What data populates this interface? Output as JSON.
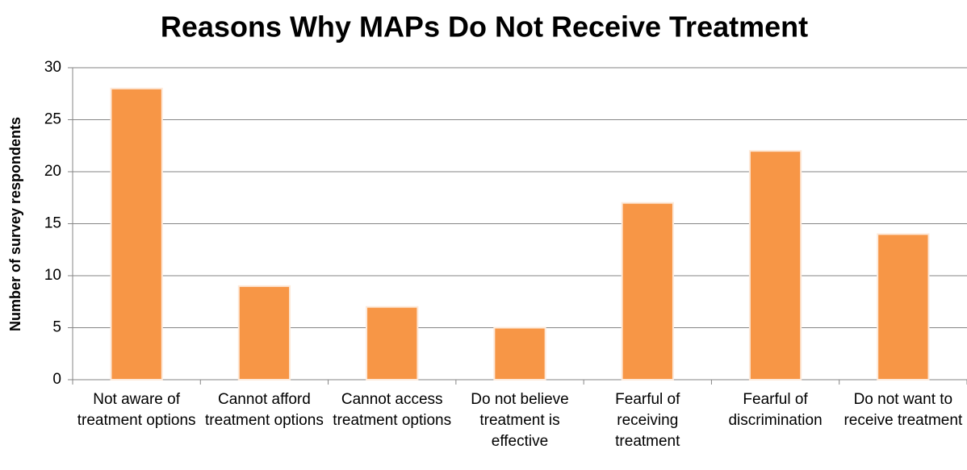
{
  "chart_data": {
    "type": "bar",
    "title": "Reasons Why MAPs Do Not Receive Treatment",
    "y_label": "Number of survey respondents",
    "categories": [
      "Not aware of treatment options",
      "Cannot afford treatment options",
      "Cannot access treatment options",
      "Do not believe treatment is effective",
      "Fearful of receiving treatment",
      "Fearful of discrimination",
      "Do not want to receive treatment"
    ],
    "values": [
      28,
      9,
      7,
      5,
      17,
      22,
      14
    ],
    "color": "#f79646",
    "ylim": [
      0,
      30
    ],
    "yticks": [
      0,
      5,
      10,
      15,
      20,
      25,
      30
    ],
    "grid": true
  }
}
